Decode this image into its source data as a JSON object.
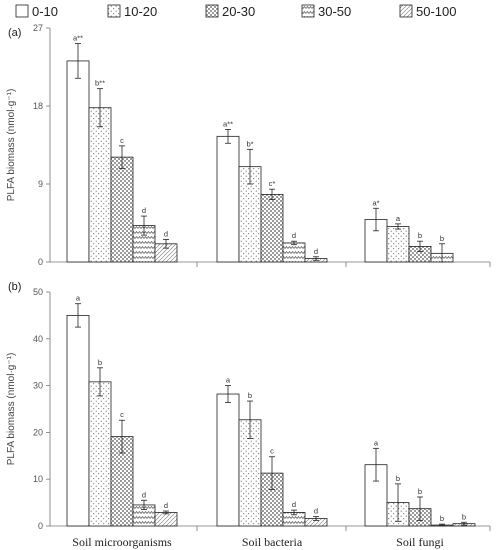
{
  "legend": [
    "0-10",
    "10-20",
    "20-30",
    "30-50",
    "50-100"
  ],
  "chart_data": [
    {
      "type": "bar",
      "panel_label": "(a)",
      "ylabel": "PLFA biomass (nmol·g⁻¹)",
      "ylim": [
        0,
        27
      ],
      "yticks": [
        0,
        9,
        18,
        27
      ],
      "categories": [
        "Soil microorganisms",
        "Soil bacteria",
        "Soil fungi"
      ],
      "series": [
        {
          "name": "0-10",
          "values": [
            23.2,
            14.5,
            4.9
          ],
          "errors": [
            2.0,
            0.8,
            1.3
          ],
          "labels": [
            "a**",
            "a**",
            "a*"
          ]
        },
        {
          "name": "10-20",
          "values": [
            17.8,
            11.0,
            4.1
          ],
          "errors": [
            2.2,
            2.0,
            0.3
          ],
          "labels": [
            "b**",
            "b*",
            "a"
          ]
        },
        {
          "name": "20-30",
          "values": [
            12.1,
            7.8,
            1.8
          ],
          "errors": [
            1.3,
            0.6,
            0.6
          ],
          "labels": [
            "c",
            "c*",
            "b"
          ]
        },
        {
          "name": "30-50",
          "values": [
            4.2,
            2.2,
            1.0
          ],
          "errors": [
            1.1,
            0.2,
            1.1
          ],
          "labels": [
            "d",
            "d",
            "b"
          ]
        },
        {
          "name": "50-100",
          "values": [
            2.1,
            0.4,
            0.0
          ],
          "errors": [
            0.5,
            0.2,
            0.0
          ],
          "labels": [
            "d",
            "d",
            ""
          ]
        }
      ]
    },
    {
      "type": "bar",
      "panel_label": "(b)",
      "ylabel": "PLFA biomass (nmol·g⁻¹)",
      "ylim": [
        0,
        50
      ],
      "yticks": [
        0,
        10,
        20,
        30,
        40,
        50
      ],
      "categories": [
        "Soil microorganisms",
        "Soil bacteria",
        "Soil fungi"
      ],
      "series": [
        {
          "name": "0-10",
          "values": [
            45.0,
            28.2,
            13.1
          ],
          "errors": [
            2.5,
            1.8,
            3.5
          ],
          "labels": [
            "a",
            "a",
            "a"
          ]
        },
        {
          "name": "10-20",
          "values": [
            30.8,
            22.7,
            5.0
          ],
          "errors": [
            3.0,
            4.0,
            4.0
          ],
          "labels": [
            "b",
            "b",
            "b"
          ]
        },
        {
          "name": "20-30",
          "values": [
            19.1,
            11.3,
            3.7
          ],
          "errors": [
            3.5,
            3.5,
            2.5
          ],
          "labels": [
            "c",
            "c",
            "b"
          ]
        },
        {
          "name": "30-50",
          "values": [
            4.5,
            2.9,
            0.2
          ],
          "errors": [
            1.0,
            0.5,
            0.2
          ],
          "labels": [
            "d",
            "d",
            "b"
          ]
        },
        {
          "name": "50-100",
          "values": [
            2.9,
            1.6,
            0.5
          ],
          "errors": [
            0.3,
            0.4,
            0.3
          ],
          "labels": [
            "d",
            "d",
            "b"
          ]
        }
      ]
    }
  ]
}
